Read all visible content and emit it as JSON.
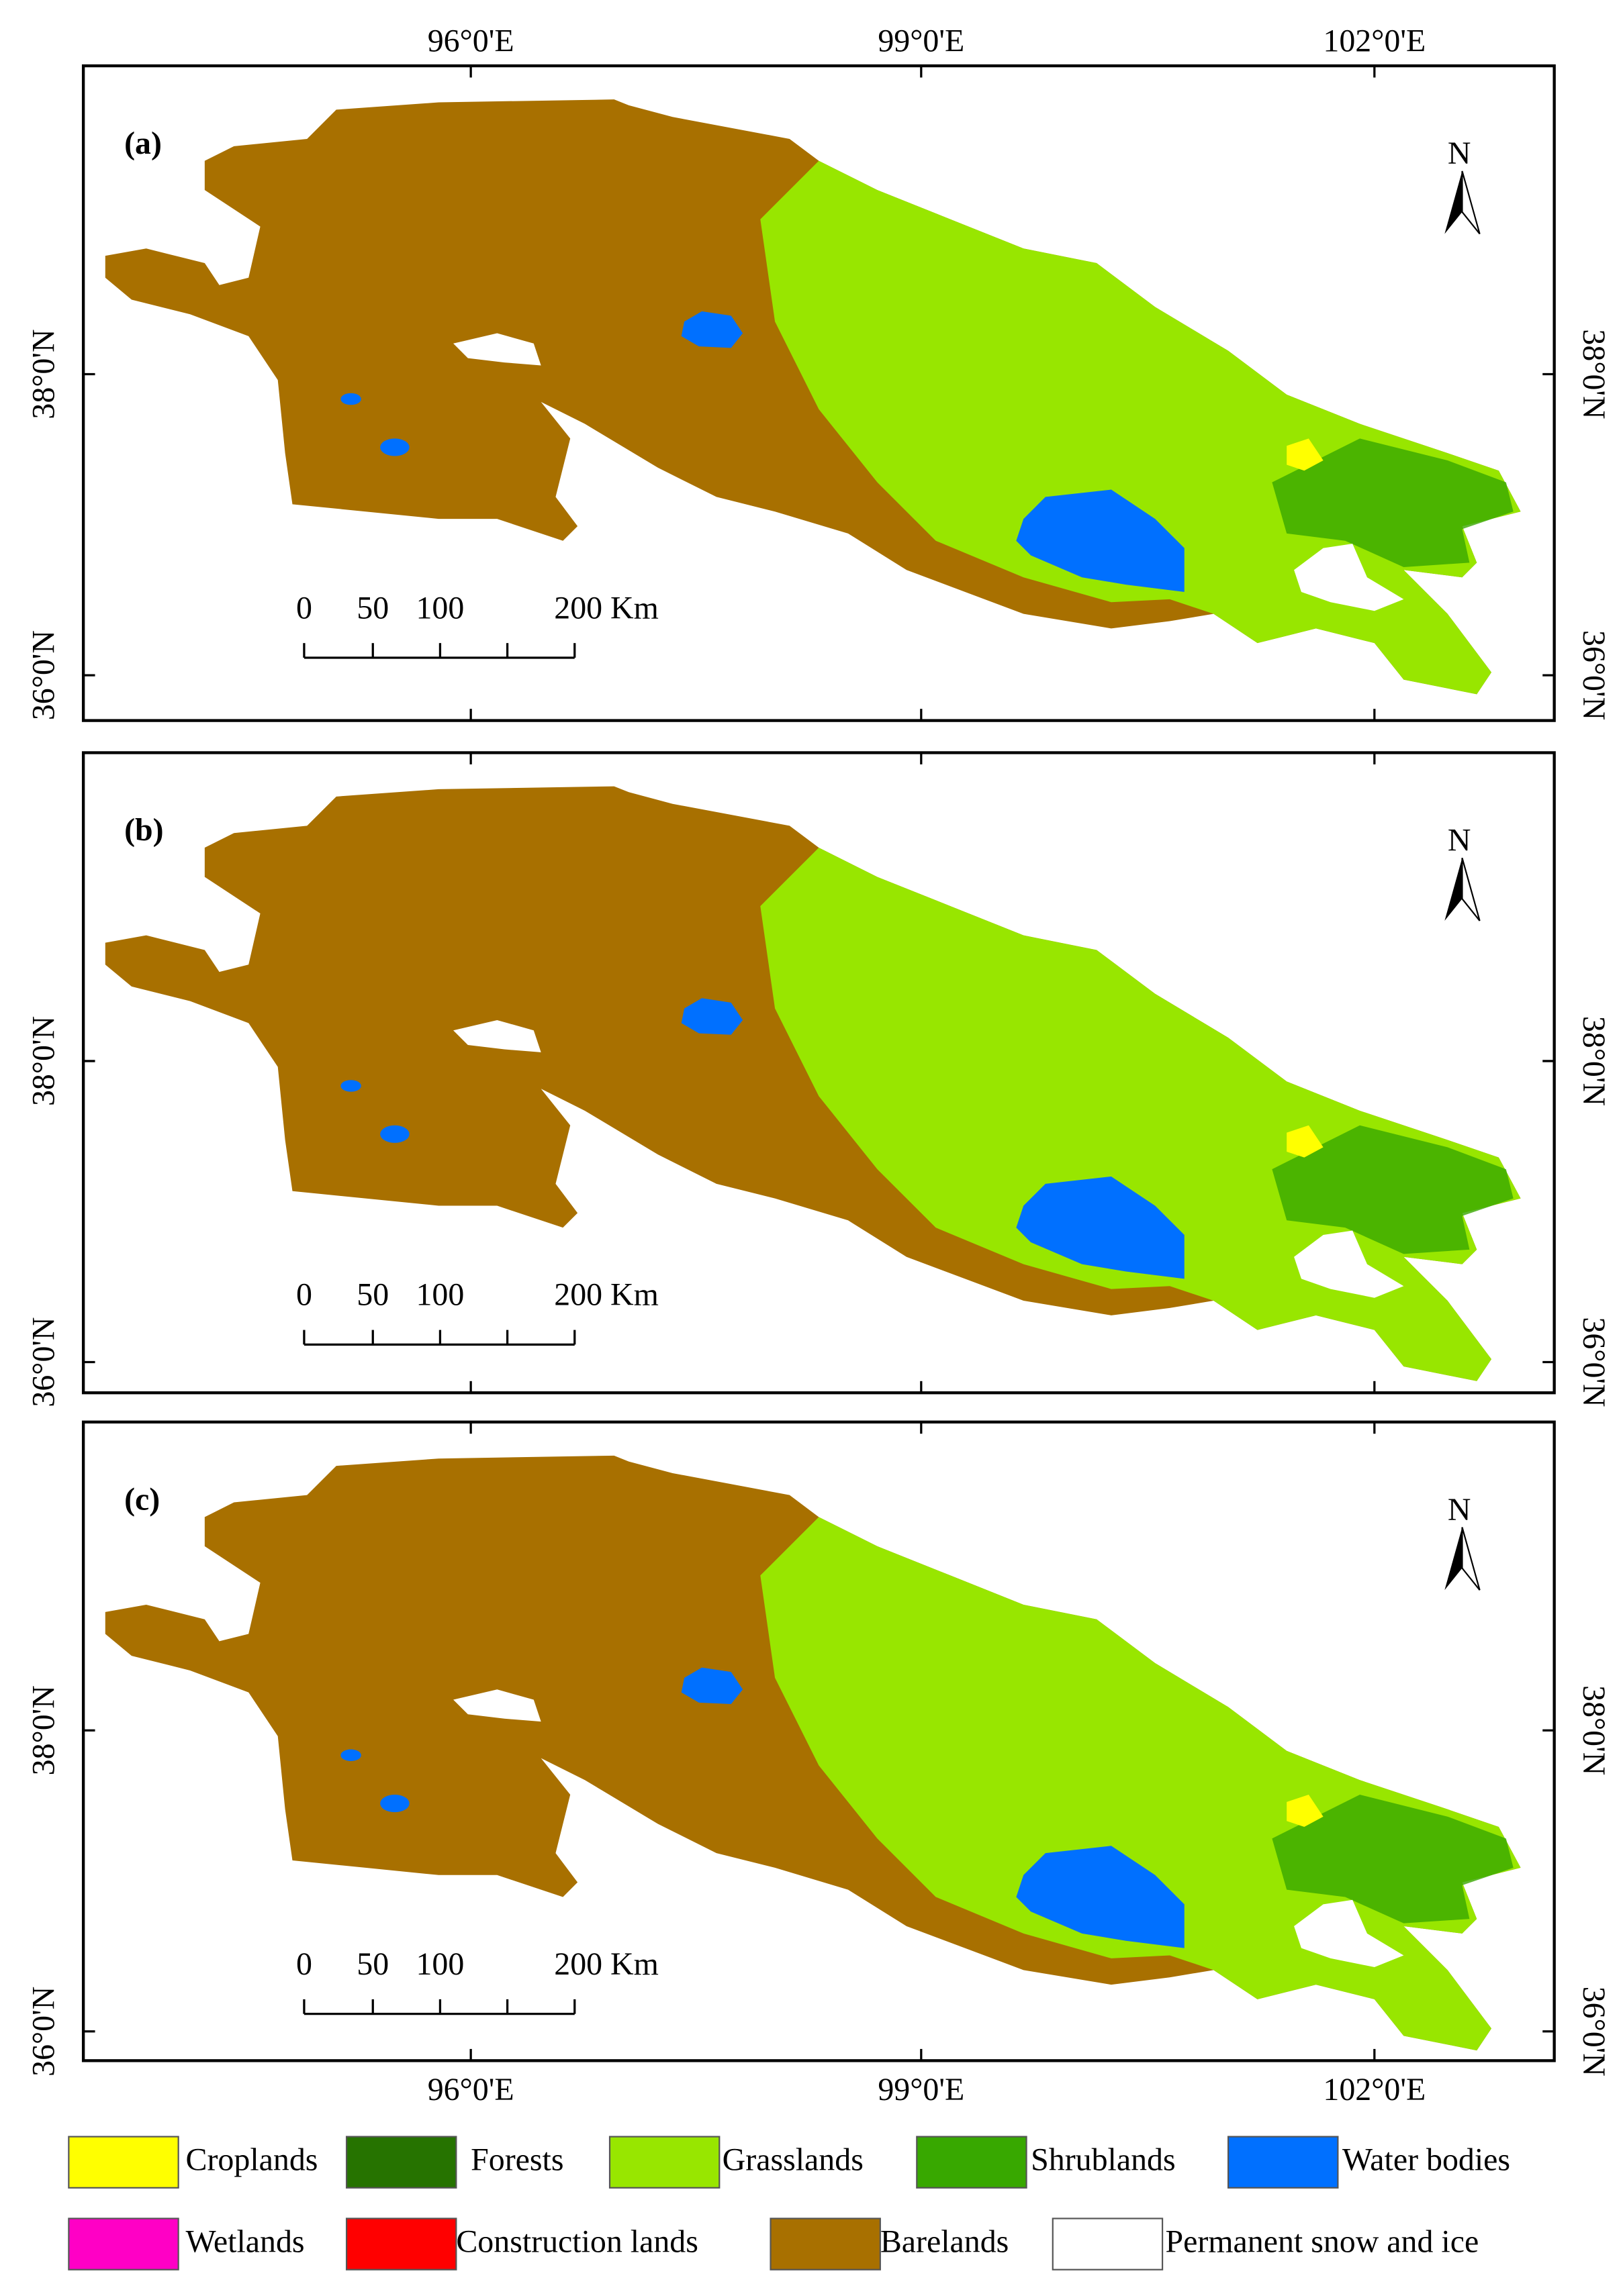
{
  "panels": [
    {
      "label": "(a)"
    },
    {
      "label": "(b)"
    },
    {
      "label": "(c)"
    }
  ],
  "longitude_labels": [
    "96°0'E",
    "99°0'E",
    "102°0'E"
  ],
  "latitude_labels": [
    "38°0'N",
    "36°0'N"
  ],
  "scale_bar": {
    "labels": [
      "0",
      "50",
      "100",
      "200 Km"
    ]
  },
  "north_arrow": "N",
  "legend": [
    {
      "name": "Croplands",
      "color": "#ffff00"
    },
    {
      "name": "Forests",
      "color": "#267300"
    },
    {
      "name": "Grasslands",
      "color": "#98e600"
    },
    {
      "name": "Shrublands",
      "color": "#38a800"
    },
    {
      "name": "Water bodies",
      "color": "#0070ff"
    },
    {
      "name": "Wetlands",
      "color": "#ff00c5"
    },
    {
      "name": "Construction lands",
      "color": "#ff0000"
    },
    {
      "name": "Barelands",
      "color": "#a87000"
    },
    {
      "name": "Permanent snow and ice",
      "color": "#ffffff"
    }
  ]
}
